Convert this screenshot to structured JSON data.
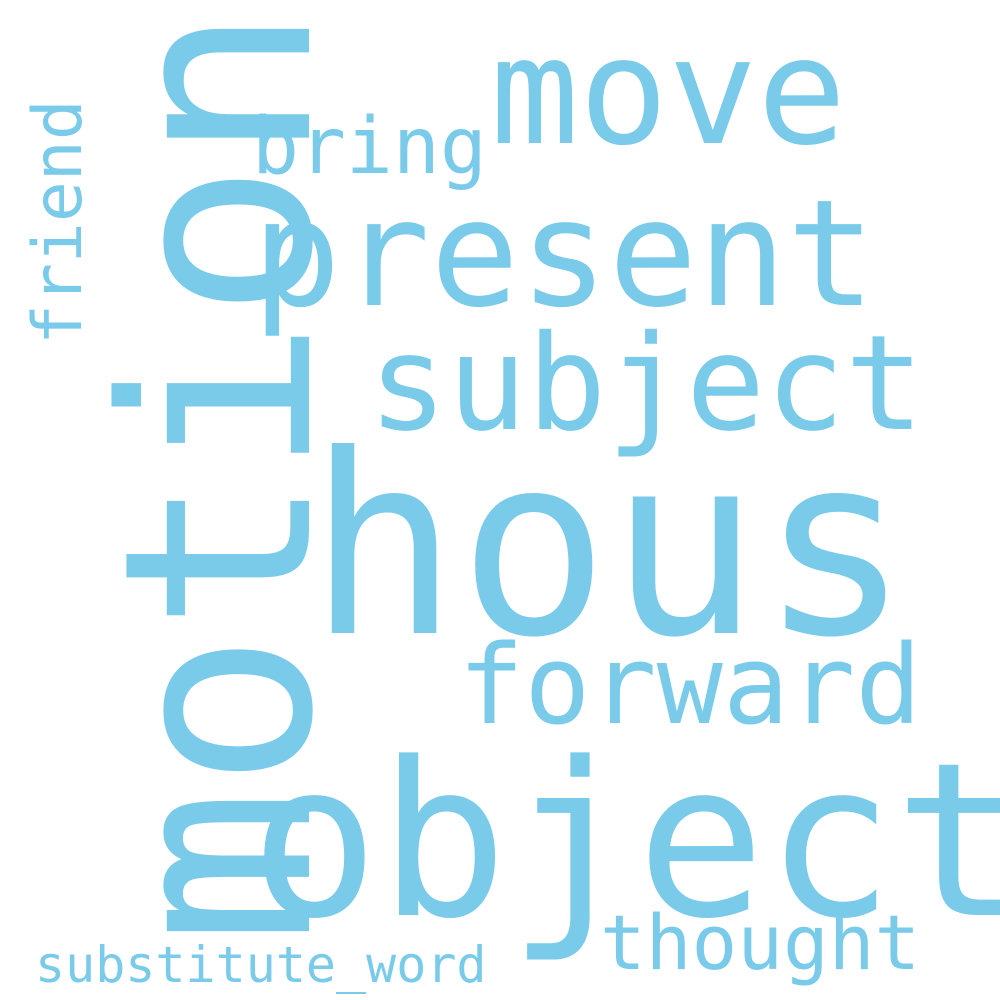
{
  "words": {
    "motion": "motion",
    "hous": "hous",
    "object": "object",
    "present": "present",
    "move": "move",
    "subject": "subject",
    "forward": "forward",
    "thought": "thought",
    "bring": "bring",
    "friend": "friend",
    "substitute_word": "substitute_word"
  },
  "colors": {
    "word": "#7ACAEA",
    "background": "#FFFFFF"
  }
}
